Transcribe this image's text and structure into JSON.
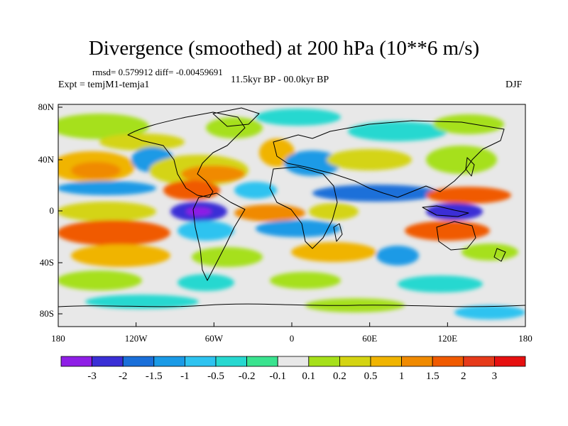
{
  "title": "Divergence (smoothed) at 200 hPa (10**6 m/s)",
  "stats_line": "rmsd= 0.579912 diff= -0.00459691",
  "expt_label": "Expt = temjM1-temja1",
  "period_label": "11.5kyr BP - 00.0kyr BP",
  "season_label": "DJF",
  "y_axis_labels": [
    "80N",
    "40N",
    "0",
    "40S",
    "80S"
  ],
  "x_axis_labels": [
    "180",
    "120W",
    "60W",
    "0",
    "60E",
    "120E",
    "180"
  ],
  "colorbar": {
    "labels": [
      "-3",
      "-2",
      "-1.5",
      "-1",
      "-0.5",
      "-0.2",
      "-0.1",
      "0.1",
      "0.2",
      "0.5",
      "1",
      "1.5",
      "2",
      "3"
    ],
    "colors": [
      "#8f1fe6",
      "#3a2fd6",
      "#1a6fd9",
      "#1a9ae6",
      "#2ec3f0",
      "#27d8d0",
      "#3ae38f",
      "#e8e8e8",
      "#a6e01a",
      "#d4d412",
      "#f0b400",
      "#f08a00",
      "#f05a00",
      "#e63a1a",
      "#e61010"
    ]
  },
  "colors": {
    "neutral": "#e8e8e8",
    "coast": "#000000"
  }
}
